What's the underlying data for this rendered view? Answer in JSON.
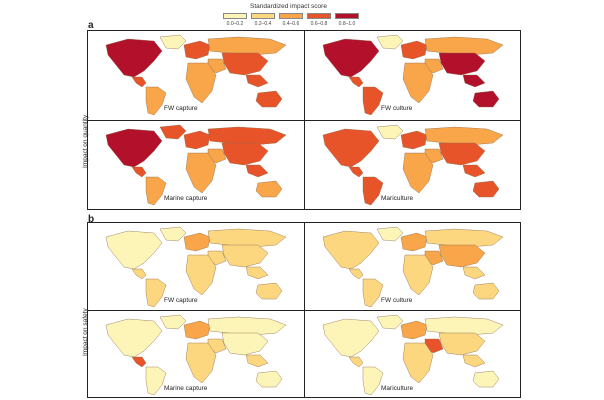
{
  "legend": {
    "title": "Standardized impact score",
    "items": [
      {
        "label": "0.0–0.2",
        "color": "#fdf5b8"
      },
      {
        "label": "0.2–0.4",
        "color": "#fcd77f"
      },
      {
        "label": "0.4–0.6",
        "color": "#f9a64a"
      },
      {
        "label": "0.6–0.8",
        "color": "#e8542a"
      },
      {
        "label": "0.8–1.0",
        "color": "#b3102c"
      }
    ]
  },
  "panel_a": {
    "letter": "a",
    "row_label": "Impact on quantity",
    "maps": [
      {
        "label": "FW capture",
        "scheme": "qfw"
      },
      {
        "label": "FW culture",
        "scheme": "qcul"
      },
      {
        "label": "Marine capture",
        "scheme": "qmar"
      },
      {
        "label": "Mariculture",
        "scheme": "qmari"
      }
    ]
  },
  "panel_b": {
    "letter": "b",
    "row_label": "Impact on safety",
    "maps": [
      {
        "label": "FW capture",
        "scheme": "sfw"
      },
      {
        "label": "FW culture",
        "scheme": "scul"
      },
      {
        "label": "Marine capture",
        "scheme": "smar"
      },
      {
        "label": "Mariculture",
        "scheme": "smari"
      }
    ]
  },
  "region_colors": {
    "qfw": {
      "na": "#b3102c",
      "ca": "#e8542a",
      "sa": "#f9a64a",
      "eu": "#e8542a",
      "af": "#f9a64a",
      "me": "#f9a64a",
      "ru": "#f9a64a",
      "as": "#e8542a",
      "sea": "#e8542a",
      "au": "#e8542a",
      "gl": "#fdf5b8"
    },
    "qcul": {
      "na": "#b3102c",
      "ca": "#e8542a",
      "sa": "#e8542a",
      "eu": "#e8542a",
      "af": "#f9a64a",
      "me": "#f9a64a",
      "ru": "#f9a64a",
      "as": "#b3102c",
      "sea": "#b3102c",
      "au": "#b3102c",
      "gl": "#fdf5b8"
    },
    "qmar": {
      "na": "#b3102c",
      "ca": "#e8542a",
      "sa": "#f9a64a",
      "eu": "#e8542a",
      "af": "#f9a64a",
      "me": "#f9a64a",
      "ru": "#e8542a",
      "as": "#e8542a",
      "sea": "#e8542a",
      "au": "#f9a64a",
      "gl": "#e8542a"
    },
    "qmari": {
      "na": "#e8542a",
      "ca": "#e8542a",
      "sa": "#e8542a",
      "eu": "#e8542a",
      "af": "#f9a64a",
      "me": "#f9a64a",
      "ru": "#f9a64a",
      "as": "#e8542a",
      "sea": "#e8542a",
      "au": "#e8542a",
      "gl": "#fdf5b8"
    },
    "sfw": {
      "na": "#fdf5b8",
      "ca": "#fcd77f",
      "sa": "#fcd77f",
      "eu": "#f9a64a",
      "af": "#fcd77f",
      "me": "#fcd77f",
      "ru": "#fcd77f",
      "as": "#fcd77f",
      "sea": "#fcd77f",
      "au": "#fcd77f",
      "gl": "#fdf5b8"
    },
    "scul": {
      "na": "#fcd77f",
      "ca": "#fcd77f",
      "sa": "#fcd77f",
      "eu": "#f9a64a",
      "af": "#fcd77f",
      "me": "#f9a64a",
      "ru": "#fcd77f",
      "as": "#f9a64a",
      "sea": "#fcd77f",
      "au": "#fcd77f",
      "gl": "#fdf5b8"
    },
    "smar": {
      "na": "#fdf5b8",
      "ca": "#e8542a",
      "sa": "#fdf5b8",
      "eu": "#f9a64a",
      "af": "#fcd77f",
      "me": "#fcd77f",
      "ru": "#fdf5b8",
      "as": "#fdf5b8",
      "sea": "#fcd77f",
      "au": "#fdf5b8",
      "gl": "#fdf5b8"
    },
    "smari": {
      "na": "#fdf5b8",
      "ca": "#fcd77f",
      "sa": "#fdf5b8",
      "eu": "#f9a64a",
      "af": "#fcd77f",
      "me": "#e8542a",
      "ru": "#fdf5b8",
      "as": "#fcd77f",
      "sea": "#fcd77f",
      "au": "#fdf5b8",
      "gl": "#fdf5b8"
    }
  }
}
